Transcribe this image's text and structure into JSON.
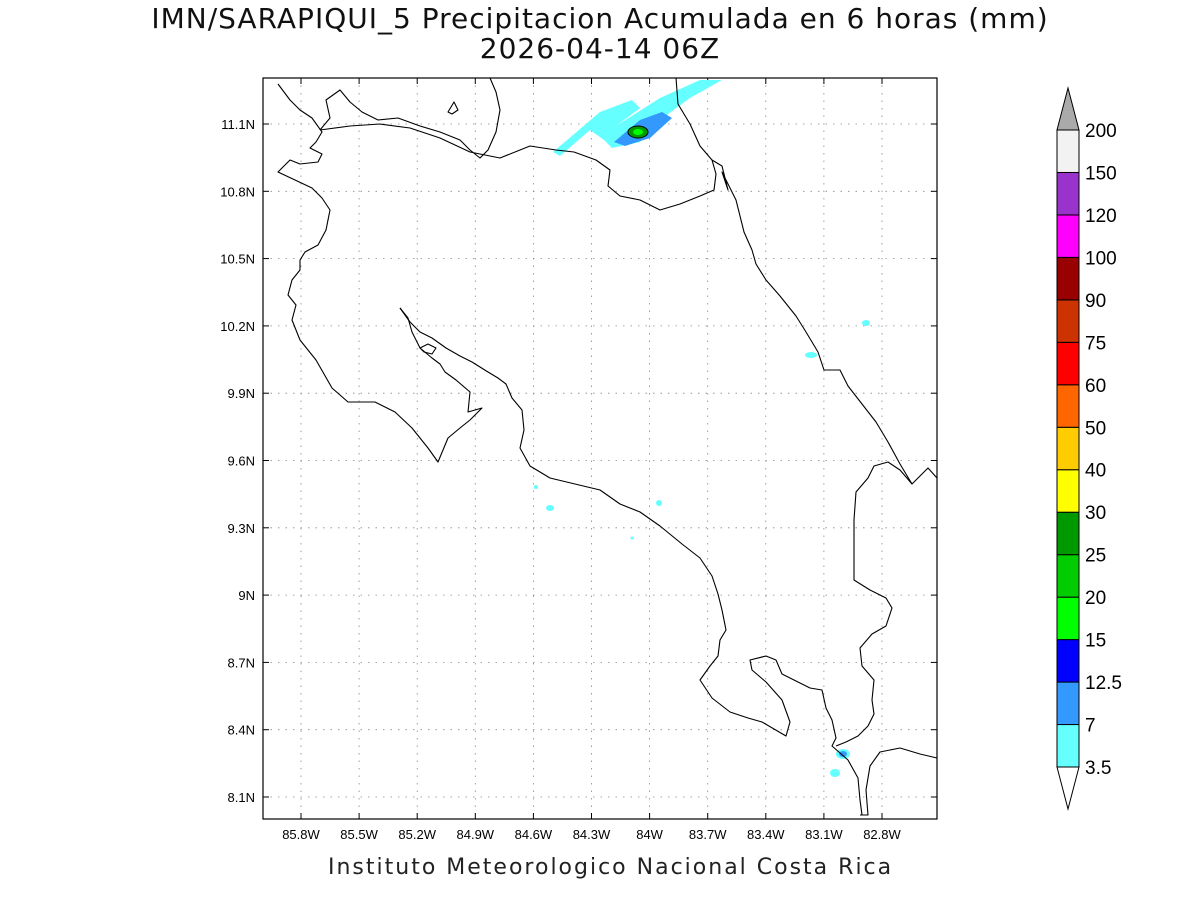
{
  "title": {
    "line1": "IMN/SARAPIQUI_5 Precipitacion Acumulada en 6 horas (mm)",
    "line2": "2026-04-14 06Z"
  },
  "footer": "Instituto Meteorologico Nacional Costa Rica",
  "map": {
    "lat_ticks": [
      "11.1N",
      "10.8N",
      "10.5N",
      "10.2N",
      "9.9N",
      "9.6N",
      "9.3N",
      "9N",
      "8.7N",
      "8.4N",
      "8.1N"
    ],
    "lon_ticks": [
      "85.8W",
      "85.5W",
      "85.2W",
      "84.9W",
      "84.6W",
      "84.3W",
      "84W",
      "83.7W",
      "83.4W",
      "83.1W",
      "82.8W"
    ],
    "grid": true,
    "land_outline_color": "#000000"
  },
  "colorbar": {
    "levels": [
      "3.5",
      "7",
      "12.5",
      "15",
      "20",
      "25",
      "30",
      "40",
      "50",
      "60",
      "75",
      "90",
      "100",
      "120",
      "150",
      "200"
    ],
    "colors": [
      "#66ffff",
      "#3399ff",
      "#0000ff",
      "#00ff00",
      "#00cc00",
      "#009900",
      "#ffff00",
      "#ffcc00",
      "#ff6600",
      "#ff0000",
      "#cc3300",
      "#990000",
      "#ff00ff",
      "#9933cc",
      "#f2f2f2",
      "#aaaaaa"
    ],
    "low_end_color": "#ffffff",
    "high_end_color": "#aaaaaa"
  }
}
